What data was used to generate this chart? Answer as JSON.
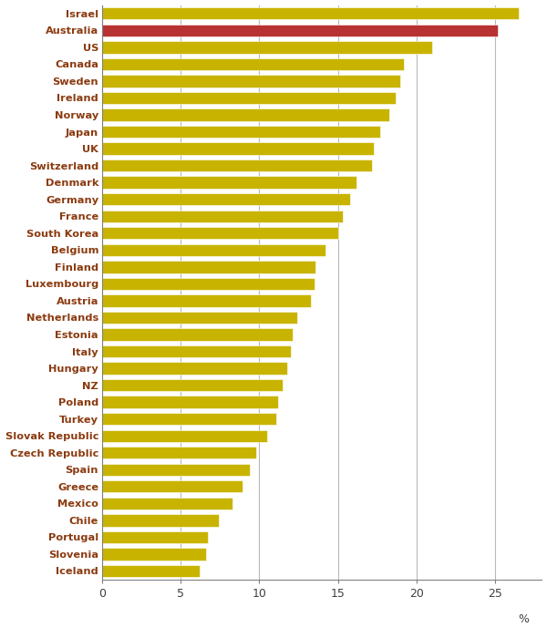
{
  "countries": [
    "Israel",
    "Australia",
    "US",
    "Canada",
    "Sweden",
    "Ireland",
    "Norway",
    "Japan",
    "UK",
    "Switzerland",
    "Denmark",
    "Germany",
    "France",
    "South Korea",
    "Belgium",
    "Finland",
    "Luxembourg",
    "Austria",
    "Netherlands",
    "Estonia",
    "Italy",
    "Hungary",
    "NZ",
    "Poland",
    "Turkey",
    "Slovak Republic",
    "Czech Republic",
    "Spain",
    "Greece",
    "Mexico",
    "Chile",
    "Portugal",
    "Slovenia",
    "Iceland"
  ],
  "values": [
    26.5,
    25.2,
    21.0,
    19.2,
    19.0,
    18.7,
    18.3,
    17.7,
    17.3,
    17.2,
    16.2,
    15.8,
    15.3,
    15.0,
    14.2,
    13.6,
    13.5,
    13.3,
    12.4,
    12.1,
    12.0,
    11.8,
    11.5,
    11.2,
    11.1,
    10.5,
    9.8,
    9.4,
    8.9,
    8.3,
    7.4,
    6.7,
    6.6,
    6.2
  ],
  "bar_colors": [
    "#c8b400",
    "#b83232",
    "#c8b400",
    "#c8b400",
    "#c8b400",
    "#c8b400",
    "#c8b400",
    "#c8b400",
    "#c8b400",
    "#c8b400",
    "#c8b400",
    "#c8b400",
    "#c8b400",
    "#c8b400",
    "#c8b400",
    "#c8b400",
    "#c8b400",
    "#c8b400",
    "#c8b400",
    "#c8b400",
    "#c8b400",
    "#c8b400",
    "#c8b400",
    "#c8b400",
    "#c8b400",
    "#c8b400",
    "#c8b400",
    "#c8b400",
    "#c8b400",
    "#c8b400",
    "#c8b400",
    "#c8b400",
    "#c8b400",
    "#c8b400"
  ],
  "xlim": [
    0,
    28
  ],
  "xticks": [
    0,
    5,
    10,
    15,
    20,
    25
  ],
  "background_color": "#ffffff",
  "grid_color": "#b8b8b8",
  "label_color": "#8B3A0F",
  "tick_label_color": "#404040",
  "bar_height": 0.72,
  "figsize": [
    6.0,
    7.0
  ],
  "dpi": 100
}
